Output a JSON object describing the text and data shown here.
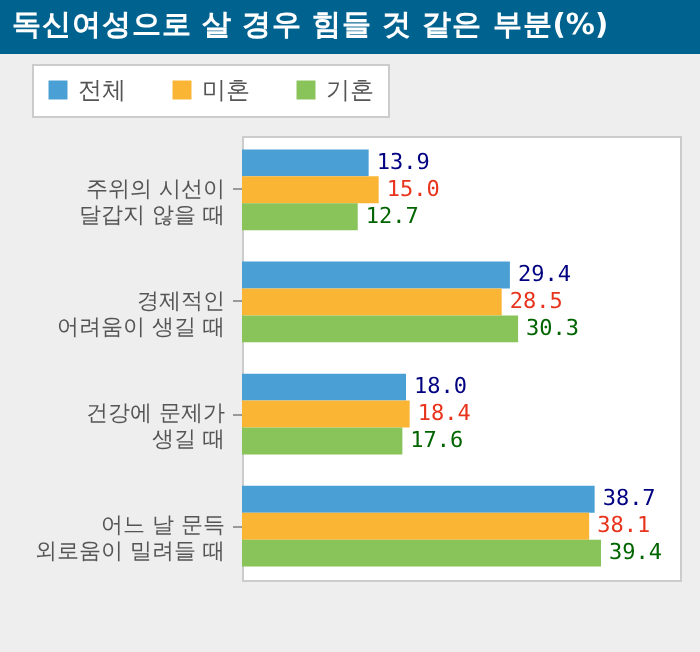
{
  "chart_data": {
    "type": "bar",
    "orientation": "horizontal",
    "title": "독신여성으로 살 경우 힘들 것 같은 부분(%)",
    "categories": [
      "주위의 시선이\n달갑지 않을 때",
      "경제적인\n어려움이 생길 때",
      "건강에 문제가\n생길 때",
      "어느 날 문득\n외로움이 밀려들 때"
    ],
    "series": [
      {
        "name": "전체",
        "color": "#4aa0d5",
        "values": [
          13.9,
          29.4,
          18.0,
          38.7
        ],
        "value_labels": [
          "13.9",
          "29.4",
          "18.0",
          "38.7"
        ]
      },
      {
        "name": "미혼",
        "color": "#fbb535",
        "values": [
          15.0,
          28.5,
          18.4,
          38.1
        ],
        "value_labels": [
          "15.0",
          "28.5",
          "18.4",
          "38.1"
        ]
      },
      {
        "name": "기혼",
        "color": "#89c45a",
        "values": [
          12.7,
          30.3,
          17.6,
          39.4
        ],
        "value_labels": [
          "12.7",
          "30.3",
          "17.6",
          "39.4"
        ]
      }
    ],
    "legend": "top left",
    "grid": false
  }
}
